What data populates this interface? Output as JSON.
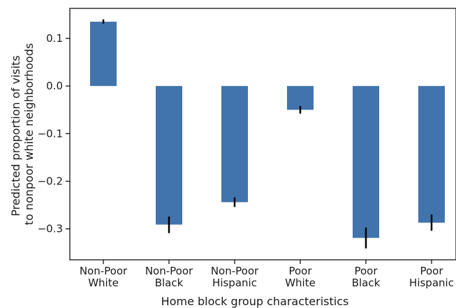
{
  "chart_data": {
    "type": "bar",
    "title": "",
    "xlabel": "Home block group characteristics",
    "ylabel": [
      "Predicted proportion of visits",
      "to nonpoor white neighborhoods"
    ],
    "categories": [
      [
        "Non-Poor",
        "White"
      ],
      [
        "Non-Poor",
        "Black"
      ],
      [
        "Non-Poor",
        "Hispanic"
      ],
      [
        "Poor",
        "White"
      ],
      [
        "Poor",
        "Black"
      ],
      [
        "Poor",
        "Hispanic"
      ]
    ],
    "values": [
      0.135,
      -0.291,
      -0.244,
      -0.05,
      -0.319,
      -0.287
    ],
    "error_low": [
      0.131,
      -0.309,
      -0.254,
      -0.058,
      -0.341,
      -0.304
    ],
    "error_high": [
      0.14,
      -0.274,
      -0.234,
      -0.042,
      -0.297,
      -0.27
    ],
    "ylim": [
      -0.365,
      0.163
    ],
    "yticks": [
      0.1,
      0.0,
      -0.1,
      -0.2,
      -0.3
    ],
    "ytick_labels": [
      "0.1",
      "0.0",
      "−0.1",
      "−0.2",
      "−0.3"
    ],
    "grid": false,
    "bar_color": "#4174ad",
    "error_color": "#000000"
  }
}
